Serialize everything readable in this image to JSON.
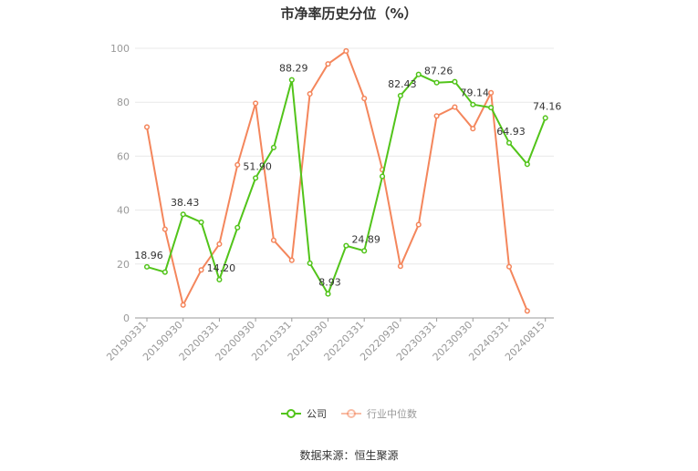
{
  "chart_data": {
    "type": "line",
    "title": "市净率历史分位（%）",
    "xlabel": "",
    "ylabel": "",
    "ylim": [
      0,
      100
    ],
    "yticks": [
      0,
      20,
      40,
      60,
      80,
      100
    ],
    "x_tick_labels": [
      "20190331",
      "20190930",
      "20200331",
      "20200930",
      "20210331",
      "20210930",
      "20220331",
      "20220930",
      "20230331",
      "20230930",
      "20240331",
      "20240815"
    ],
    "legend_position": "bottom",
    "grid": "horizontal",
    "series": [
      {
        "name": "公司",
        "color": "#52c41a",
        "values": [
          18.96,
          17.0,
          38.43,
          35.5,
          14.2,
          33.5,
          51.9,
          63.2,
          88.29,
          20.3,
          8.93,
          26.8,
          24.89,
          52.5,
          82.43,
          90.3,
          87.26,
          87.6,
          79.14,
          78.0,
          64.93,
          57.0,
          74.16
        ],
        "labels": {
          "0": "18.96",
          "2": "38.43",
          "4": "14.20",
          "6": "51.90",
          "8": "88.29",
          "10": "8.93",
          "12": "24.89",
          "14": "82.43",
          "16": "87.26",
          "18": "79.14",
          "20": "64.93",
          "22": "74.16"
        }
      },
      {
        "name": "行业中位数",
        "color": "#f4865c",
        "values": [
          70.8,
          32.9,
          4.8,
          17.8,
          27.4,
          56.8,
          79.6,
          28.8,
          21.4,
          83.1,
          94.2,
          99.0,
          81.4,
          55.0,
          19.2,
          34.6,
          74.9,
          78.2,
          70.2,
          83.5,
          19.0,
          2.6,
          null
        ]
      }
    ]
  },
  "footer": {
    "source": "数据来源：恒生聚源"
  }
}
